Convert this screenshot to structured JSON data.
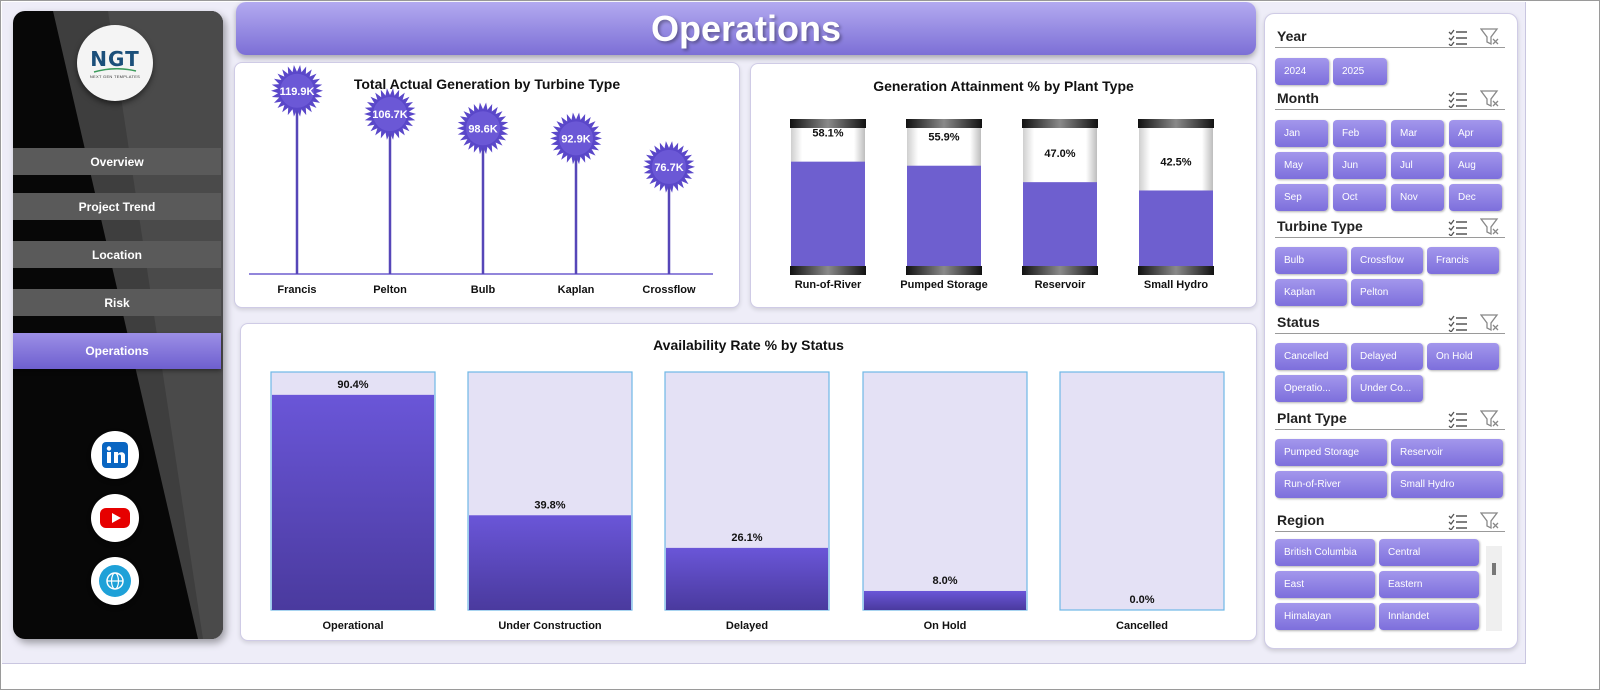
{
  "sidebar": {
    "logo": {
      "main": "NGT",
      "sub": "NEXT GEN TEMPLATES"
    },
    "nav": [
      {
        "label": "Overview",
        "active": false
      },
      {
        "label": "Project Trend",
        "active": false
      },
      {
        "label": "Location",
        "active": false
      },
      {
        "label": "Risk",
        "active": false
      },
      {
        "label": "Operations",
        "active": true
      }
    ],
    "social": [
      {
        "icon": "linkedin-icon",
        "color": "#0a66c2"
      },
      {
        "icon": "youtube-icon",
        "color": "#e60000"
      },
      {
        "icon": "globe-icon",
        "color": "#1ea1d8"
      }
    ]
  },
  "header": {
    "title": "Operations"
  },
  "colors": {
    "accent": "#6e5fcf",
    "accent_light": "#a397ec",
    "track": "#e4e1f5"
  },
  "charts": {
    "turbine": {
      "title": "Total Actual Generation by Turbine Type",
      "labels": [
        "119.9K",
        "106.7K",
        "98.6K",
        "92.9K",
        "76.7K"
      ]
    },
    "plant": {
      "title": "Generation Attainment % by Plant Type",
      "labels": [
        "58.1%",
        "55.9%",
        "47.0%",
        "42.5%"
      ]
    },
    "status": {
      "title": "Availability Rate % by Status",
      "labels": [
        "90.4%",
        "39.8%",
        "26.1%",
        "8.0%",
        "0.0%"
      ]
    }
  },
  "chart_data": [
    {
      "type": "bar",
      "title": "Total Actual Generation by Turbine Type",
      "categories": [
        "Francis",
        "Pelton",
        "Bulb",
        "Kaplan",
        "Crossflow"
      ],
      "values": [
        119900,
        106700,
        98600,
        92900,
        76700
      ],
      "ylim": [
        0,
        130000
      ]
    },
    {
      "type": "bar",
      "title": "Generation Attainment % by Plant Type",
      "categories": [
        "Run-of-River",
        "Pumped Storage",
        "Reservoir",
        "Small Hydro"
      ],
      "values": [
        58.1,
        55.9,
        47.0,
        42.5
      ],
      "ylim": [
        0,
        100
      ]
    },
    {
      "type": "bar",
      "title": "Availability Rate % by Status",
      "categories": [
        "Operational",
        "Under Construction",
        "Delayed",
        "On Hold",
        "Cancelled"
      ],
      "values": [
        90.4,
        39.8,
        26.1,
        8.0,
        0.0
      ],
      "ylim": [
        0,
        100
      ]
    }
  ],
  "slicers": {
    "year": {
      "title": "Year",
      "items": [
        "2024",
        "2025"
      ]
    },
    "month": {
      "title": "Month",
      "items": [
        "Jan",
        "Feb",
        "Mar",
        "Apr",
        "May",
        "Jun",
        "Jul",
        "Aug",
        "Sep",
        "Oct",
        "Nov",
        "Dec"
      ]
    },
    "turbine": {
      "title": "Turbine Type",
      "items": [
        "Bulb",
        "Crossflow",
        "Francis",
        "Kaplan",
        "Pelton"
      ]
    },
    "status": {
      "title": "Status",
      "items": [
        "Cancelled",
        "Delayed",
        "On Hold",
        "Operatio...",
        "Under Co..."
      ]
    },
    "plant": {
      "title": "Plant Type",
      "items": [
        "Pumped Storage",
        "Reservoir",
        "Run-of-River",
        "Small Hydro"
      ]
    },
    "region": {
      "title": "Region",
      "items": [
        "British Columbia",
        "Central",
        "East",
        "Eastern",
        "Himalayan",
        "Innlandet"
      ]
    }
  }
}
